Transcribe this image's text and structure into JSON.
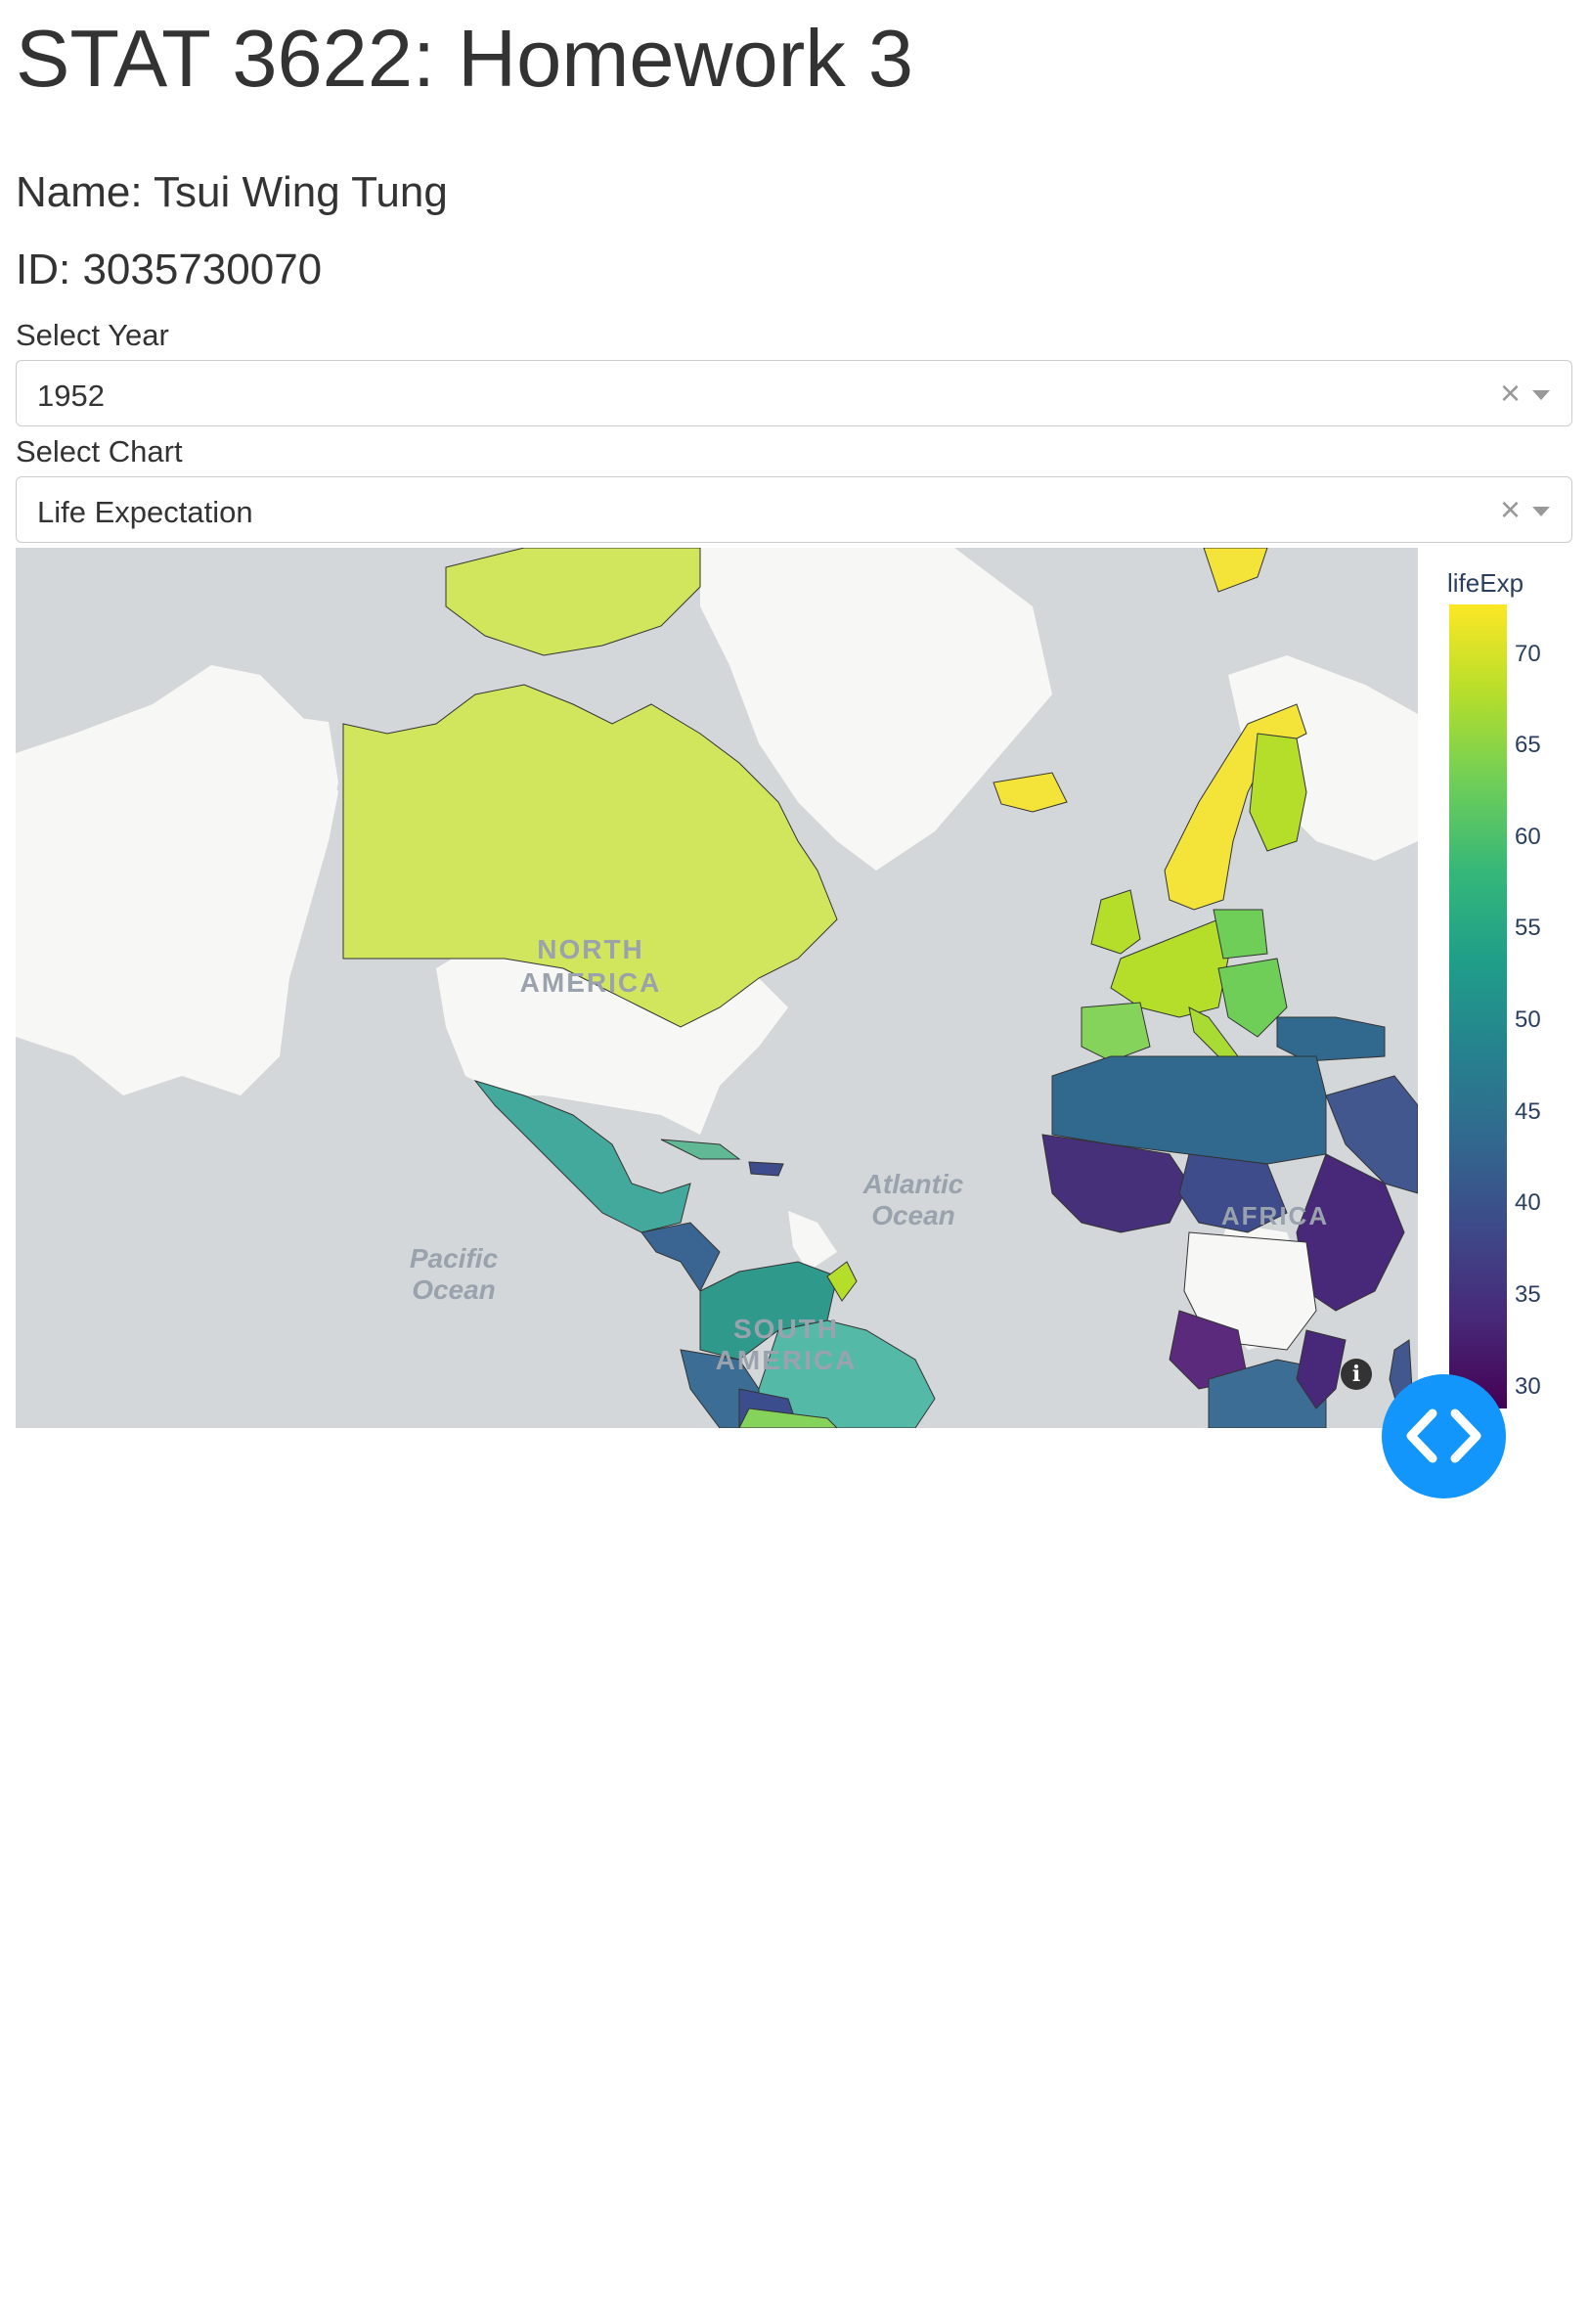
{
  "header": {
    "title": "STAT 3622: Homework 3",
    "name": "Name: Tsui Wing Tung",
    "id": "ID: 3035730070"
  },
  "controls": {
    "year_label": "Select Year",
    "year_value": "1952",
    "chart_label": "Select Chart",
    "chart_value": "Life Expectation",
    "clear_glyph": "×"
  },
  "map": {
    "labels": {
      "north_america": [
        "NORTH",
        "AMERICA"
      ],
      "south_america": [
        "SOUTH",
        "AMERICA"
      ],
      "africa": "AFRICA",
      "atlantic": [
        "Atlantic",
        "Ocean"
      ],
      "pacific": [
        "Pacific",
        "Ocean"
      ]
    },
    "colorbar": {
      "title": "lifeExp",
      "ticks": [
        "70",
        "65",
        "60",
        "55",
        "50",
        "45",
        "40",
        "35",
        "30"
      ],
      "range": [
        28.8,
        72.7
      ],
      "colorscale": [
        "#440154",
        "#482878",
        "#3e4989",
        "#31688e",
        "#26828e",
        "#1f9e89",
        "#35b779",
        "#6ece58",
        "#b5de2b",
        "#fde725"
      ]
    },
    "info_glyph": "i"
  },
  "fab": {
    "icon": "code-brackets-icon"
  }
}
